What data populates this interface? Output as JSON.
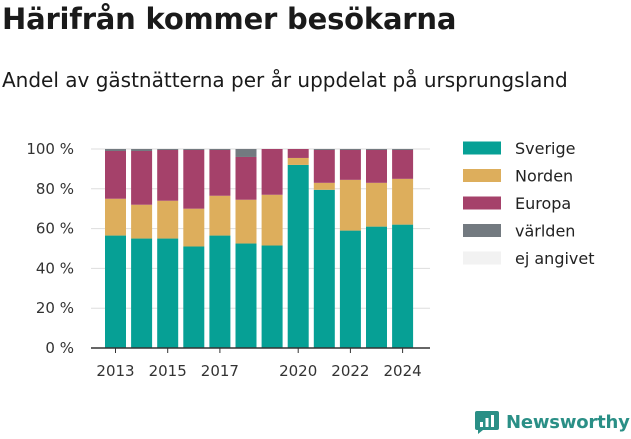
{
  "header": {
    "title": "Härifrån kommer besökarna",
    "subtitle": "Andel av gästnätterna per år uppdelat på ursprungsland"
  },
  "brand": {
    "name": "Newsworthy",
    "icon": "newsworthy-logo-icon"
  },
  "colors": {
    "Sverige": "#06a095",
    "Norden": "#ddae5c",
    "Europa": "#a5416a",
    "världen": "#737a80",
    "ej angivet": "#f2f2f2"
  },
  "chart_data": {
    "type": "bar",
    "stacked": true,
    "categories": [
      2013,
      2014,
      2015,
      2016,
      2017,
      2018,
      2019,
      2020,
      2021,
      2022,
      2023,
      2024
    ],
    "x_tick_labels": [
      {
        "year": 2013,
        "label": "2013"
      },
      {
        "year": 2015,
        "label": "2015"
      },
      {
        "year": 2017,
        "label": "2017"
      },
      {
        "year": 2020,
        "label": "2020"
      },
      {
        "year": 2022,
        "label": "2022"
      },
      {
        "year": 2024,
        "label": "2024"
      }
    ],
    "y_ticks": [
      {
        "value": 0,
        "label": "0 %"
      },
      {
        "value": 20,
        "label": "20 %"
      },
      {
        "value": 40,
        "label": "40 %"
      },
      {
        "value": 60,
        "label": "60 %"
      },
      {
        "value": 80,
        "label": "80 %"
      },
      {
        "value": 100,
        "label": "100 %"
      }
    ],
    "ylim": [
      0,
      100
    ],
    "grid": true,
    "legend_position": "right",
    "series": [
      {
        "name": "Sverige",
        "values": [
          56.5,
          55,
          55,
          51,
          56.5,
          52.5,
          51.5,
          92,
          79.5,
          59,
          61,
          62
        ]
      },
      {
        "name": "Norden",
        "values": [
          18.5,
          17,
          19,
          19,
          20,
          22,
          25.5,
          3.5,
          3.5,
          25.5,
          22,
          23
        ]
      },
      {
        "name": "Europa",
        "values": [
          24,
          27,
          25.5,
          29.5,
          23,
          21.5,
          23,
          4.5,
          16.5,
          15,
          16.5,
          14.5
        ]
      },
      {
        "name": "världen",
        "values": [
          1,
          1,
          0.5,
          0.5,
          0.5,
          4,
          0,
          0,
          0.5,
          0.5,
          0.5,
          0.5
        ]
      },
      {
        "name": "ej angivet",
        "values": [
          0,
          0,
          0,
          0,
          0,
          0,
          0,
          0,
          0,
          0,
          0,
          0
        ]
      }
    ]
  }
}
